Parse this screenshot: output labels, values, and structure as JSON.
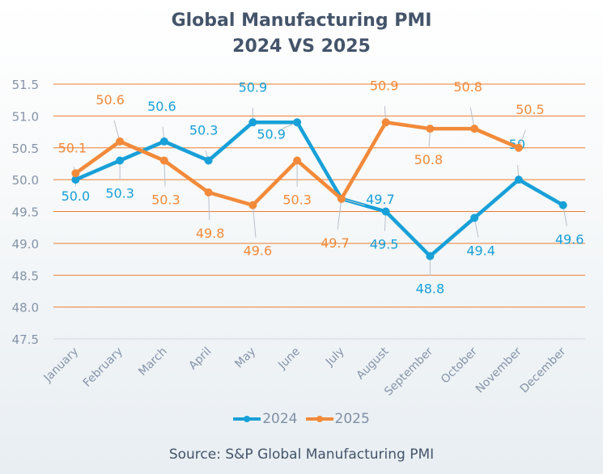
{
  "chart_data": {
    "type": "line",
    "title_line1": "Global Manufacturing PMI",
    "title_line2": "2024 VS 2025",
    "categories": [
      "January",
      "February",
      "March",
      "April",
      "May",
      "June",
      "July",
      "August",
      "September",
      "October",
      "November",
      "December"
    ],
    "series": [
      {
        "name": "2024",
        "color": "#18a0d8",
        "values": [
          50.0,
          50.3,
          50.6,
          50.3,
          50.9,
          50.9,
          49.7,
          49.5,
          48.8,
          49.4,
          50.0,
          49.6
        ],
        "labels": [
          "50.0",
          "50.3",
          "50.6",
          "50.3",
          "50.9",
          "50.9",
          "49.7",
          "49.5",
          "48.8",
          "49.4",
          "50",
          "49.6"
        ]
      },
      {
        "name": "2025",
        "color": "#f28a3a",
        "values": [
          50.1,
          50.6,
          50.3,
          49.8,
          49.6,
          50.3,
          49.7,
          50.9,
          50.8,
          50.8,
          50.5,
          null
        ],
        "labels": [
          "50.1",
          "50.6",
          "50.3",
          "49.8",
          "49.6",
          "50.3",
          "49.7",
          "50.9",
          "50.8",
          "50.8",
          "50.5",
          null
        ]
      }
    ],
    "yticks": [
      "47.5",
      "48.0",
      "48.5",
      "49.0",
      "49.5",
      "50.0",
      "50.5",
      "51.0",
      "51.5"
    ],
    "ylim": [
      47.5,
      51.5
    ],
    "xlabel": "",
    "ylabel": "",
    "grid": true,
    "gridline_color": "#ed7d31",
    "legend_position": "bottom",
    "source": "Source: S&P Global Manufacturing PMI"
  }
}
